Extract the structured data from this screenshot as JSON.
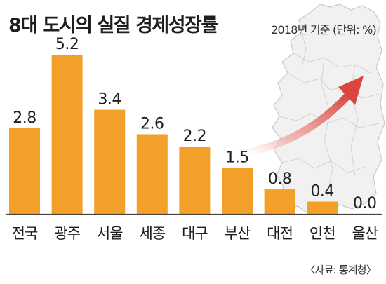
{
  "title": "8대 도시의 실질 경제성장률",
  "subtitle": "2018년 기준 (단위: %)",
  "source": "〈자료: 통계청〉",
  "colors": {
    "bar": "#F2A02A",
    "map_fill": "#f1f1f1",
    "map_stroke": "#c8c8c8",
    "arrow": "#e05a52",
    "axis": "#444444"
  },
  "icons": [
    "korea-map-icon",
    "trend-arrow-icon"
  ],
  "chart_data": {
    "type": "bar",
    "categories": [
      "전국",
      "광주",
      "서울",
      "세종",
      "대구",
      "부산",
      "대전",
      "인천",
      "울산"
    ],
    "values": [
      2.8,
      5.2,
      3.4,
      2.6,
      2.2,
      1.5,
      0.8,
      0.4,
      0.0
    ],
    "value_labels": [
      "2.8",
      "5.2",
      "3.4",
      "2.6",
      "2.2",
      "1.5",
      "0.8",
      "0.4",
      "0.0"
    ],
    "ylim": [
      0,
      5.2
    ],
    "grid": false,
    "legend": "none"
  }
}
